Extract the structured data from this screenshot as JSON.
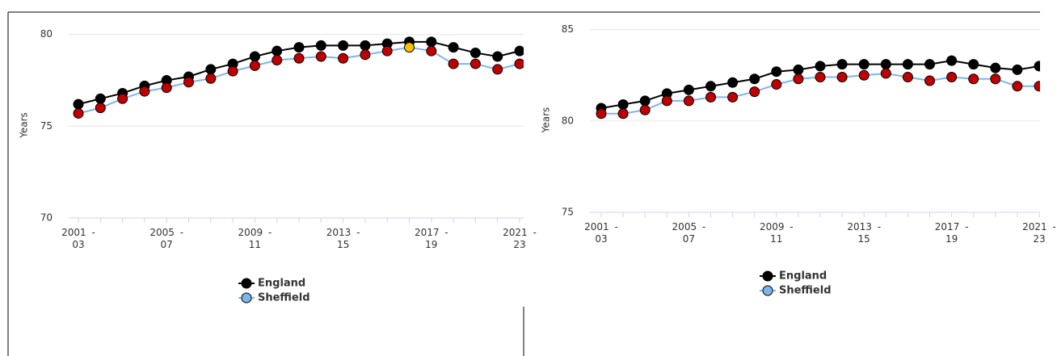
{
  "chart_data": [
    {
      "type": "line",
      "y_label": "Years",
      "categories": [
        "2001 - 03",
        null,
        null,
        null,
        "2005 - 07",
        null,
        null,
        null,
        "2009 - 11",
        null,
        null,
        null,
        "2013 - 15",
        null,
        null,
        null,
        "2017 - 19",
        null,
        null,
        null,
        "2021 - 23"
      ],
      "ylim": [
        70,
        81
      ],
      "yticks": [
        70,
        75,
        80
      ],
      "grid": true,
      "series": [
        {
          "name": "England",
          "color": "#000000",
          "values": [
            76.2,
            76.5,
            76.8,
            77.2,
            77.5,
            77.7,
            78.1,
            78.4,
            78.8,
            79.1,
            79.3,
            79.4,
            79.4,
            79.4,
            79.5,
            79.6,
            79.6,
            79.3,
            79.0,
            78.8,
            79.1
          ],
          "marker_colors": [
            "#000000",
            "#000000",
            "#000000",
            "#000000",
            "#000000",
            "#000000",
            "#000000",
            "#000000",
            "#000000",
            "#000000",
            "#000000",
            "#000000",
            "#000000",
            "#000000",
            "#000000",
            "#000000",
            "#000000",
            "#000000",
            "#000000",
            "#000000",
            "#000000"
          ]
        },
        {
          "name": "Sheffield",
          "color": "#7cb5ec",
          "values": [
            75.7,
            76.0,
            76.5,
            76.9,
            77.1,
            77.4,
            77.6,
            78.0,
            78.3,
            78.6,
            78.7,
            78.8,
            78.7,
            78.9,
            79.1,
            79.3,
            79.1,
            78.4,
            78.4,
            78.1,
            78.4
          ],
          "marker_colors": [
            "#c00000",
            "#c00000",
            "#c00000",
            "#c00000",
            "#c00000",
            "#c00000",
            "#c00000",
            "#c00000",
            "#c00000",
            "#c00000",
            "#c00000",
            "#c00000",
            "#c00000",
            "#c00000",
            "#c00000",
            "#ffc000",
            "#c00000",
            "#c00000",
            "#c00000",
            "#c00000",
            "#c00000"
          ]
        }
      ]
    },
    {
      "type": "line",
      "y_label": "Years",
      "categories": [
        "2001 - 03",
        null,
        null,
        null,
        "2005 - 07",
        null,
        null,
        null,
        "2009 - 11",
        null,
        null,
        null,
        "2013 - 15",
        null,
        null,
        null,
        "2017 - 19",
        null,
        null,
        null,
        "2021 - 23"
      ],
      "ylim": [
        75,
        86
      ],
      "yticks": [
        75,
        80,
        85
      ],
      "grid": true,
      "series": [
        {
          "name": "England",
          "color": "#000000",
          "values": [
            80.7,
            80.9,
            81.1,
            81.5,
            81.7,
            81.9,
            82.1,
            82.3,
            82.7,
            82.8,
            83.0,
            83.1,
            83.1,
            83.1,
            83.1,
            83.1,
            83.3,
            83.1,
            82.9,
            82.8,
            83.0
          ],
          "marker_colors": [
            "#000000",
            "#000000",
            "#000000",
            "#000000",
            "#000000",
            "#000000",
            "#000000",
            "#000000",
            "#000000",
            "#000000",
            "#000000",
            "#000000",
            "#000000",
            "#000000",
            "#000000",
            "#000000",
            "#000000",
            "#000000",
            "#000000",
            "#000000",
            "#000000"
          ]
        },
        {
          "name": "Sheffield",
          "color": "#7cb5ec",
          "values": [
            80.4,
            80.4,
            80.6,
            81.1,
            81.1,
            81.3,
            81.3,
            81.6,
            82.0,
            82.3,
            82.4,
            82.4,
            82.5,
            82.6,
            82.4,
            82.2,
            82.4,
            82.3,
            82.3,
            81.9,
            81.9
          ],
          "marker_colors": [
            "#c00000",
            "#c00000",
            "#c00000",
            "#c00000",
            "#c00000",
            "#c00000",
            "#c00000",
            "#c00000",
            "#c00000",
            "#c00000",
            "#c00000",
            "#c00000",
            "#c00000",
            "#c00000",
            "#c00000",
            "#c00000",
            "#c00000",
            "#c00000",
            "#c00000",
            "#c00000",
            "#c00000"
          ]
        }
      ]
    }
  ]
}
